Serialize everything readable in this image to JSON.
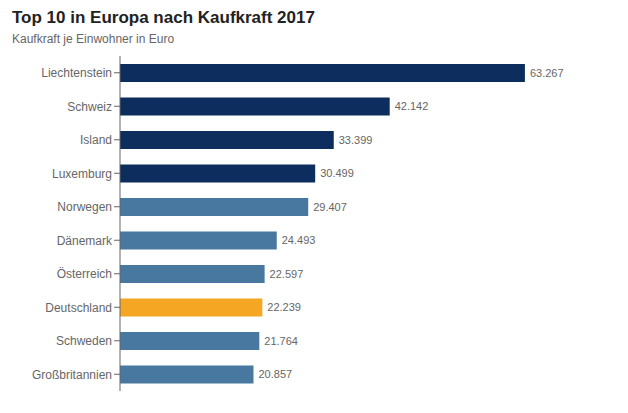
{
  "chart_data": {
    "type": "bar",
    "title": "Top 10 in Europa nach Kaufkraft 2017",
    "subtitle": "Kaufkraft je Einwohner in Euro",
    "orientation": "horizontal",
    "categories": [
      "Liechtenstein",
      "Schweiz",
      "Island",
      "Luxemburg",
      "Norwegen",
      "Dänemark",
      "Österreich",
      "Deutschland",
      "Schweden",
      "Großbritannien"
    ],
    "values": [
      63267,
      42142,
      33399,
      30499,
      29407,
      24493,
      22597,
      22239,
      21764,
      20857
    ],
    "value_labels": [
      "63.267",
      "42.142",
      "33.399",
      "30.499",
      "29.407",
      "24.493",
      "22.597",
      "22.239",
      "21.764",
      "20.857"
    ],
    "data_labels": true,
    "colors": [
      "#0d2d5e",
      "#0d2d5e",
      "#0d2d5e",
      "#0d2d5e",
      "#4878a0",
      "#4878a0",
      "#4878a0",
      "#f5a623",
      "#4878a0",
      "#4878a0"
    ],
    "xlim": [
      0,
      70000
    ],
    "tick_labels": "y",
    "grid": false
  }
}
